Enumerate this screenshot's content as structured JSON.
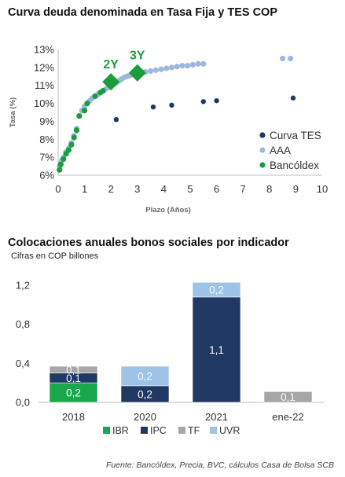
{
  "chart_data": [
    {
      "type": "scatter",
      "title": "Curva deuda denominada en Tasa Fija y TES COP",
      "xlabel": "Plazo (Años)",
      "ylabel": "Tasa (%)",
      "xlim": [
        0,
        10
      ],
      "ylim": [
        6,
        13
      ],
      "x_ticks": [
        "0",
        "1",
        "2",
        "3",
        "4",
        "5",
        "6",
        "7",
        "8",
        "9",
        "10"
      ],
      "y_ticks": [
        "6%",
        "7%",
        "8%",
        "9%",
        "10%",
        "11%",
        "12%",
        "13%"
      ],
      "grid": false,
      "legend_position": "bottom-right",
      "series": [
        {
          "name": "Curva TES",
          "color": "#1f3864",
          "points": [
            [
              2.2,
              9.1
            ],
            [
              3.6,
              9.8
            ],
            [
              4.3,
              9.9
            ],
            [
              5.5,
              10.1
            ],
            [
              6.0,
              10.15
            ],
            [
              8.9,
              10.3
            ]
          ]
        },
        {
          "name": "AAA",
          "color": "#9db8df",
          "points": [
            [
              0.05,
              6.5
            ],
            [
              0.1,
              6.7
            ],
            [
              0.15,
              6.85
            ],
            [
              0.2,
              7.0
            ],
            [
              0.3,
              7.3
            ],
            [
              0.4,
              7.5
            ],
            [
              0.5,
              7.8
            ],
            [
              0.6,
              8.2
            ],
            [
              0.7,
              8.6
            ],
            [
              0.8,
              9.3
            ],
            [
              0.9,
              9.6
            ],
            [
              1.0,
              9.85
            ],
            [
              1.1,
              10.0
            ],
            [
              1.2,
              10.15
            ],
            [
              1.3,
              10.3
            ],
            [
              1.4,
              10.4
            ],
            [
              1.5,
              10.5
            ],
            [
              1.6,
              10.6
            ],
            [
              1.7,
              10.7
            ],
            [
              1.8,
              10.8
            ],
            [
              1.9,
              10.9
            ],
            [
              2.0,
              11.0
            ],
            [
              2.1,
              11.05
            ],
            [
              2.2,
              11.15
            ],
            [
              2.3,
              11.25
            ],
            [
              2.4,
              11.35
            ],
            [
              2.5,
              11.45
            ],
            [
              2.6,
              11.5
            ],
            [
              2.7,
              11.55
            ],
            [
              2.8,
              11.6
            ],
            [
              2.9,
              11.65
            ],
            [
              3.1,
              11.7
            ],
            [
              3.3,
              11.75
            ],
            [
              3.5,
              11.8
            ],
            [
              3.7,
              11.85
            ],
            [
              3.9,
              11.9
            ],
            [
              4.1,
              11.95
            ],
            [
              4.3,
              12.0
            ],
            [
              4.5,
              12.05
            ],
            [
              4.7,
              12.1
            ],
            [
              4.9,
              12.1
            ],
            [
              5.1,
              12.15
            ],
            [
              5.3,
              12.2
            ],
            [
              5.5,
              12.2
            ],
            [
              8.5,
              12.5
            ],
            [
              8.8,
              12.5
            ]
          ]
        },
        {
          "name": "Bancóldex",
          "color": "#1a9e3c",
          "points": [
            [
              0.05,
              6.3
            ],
            [
              0.1,
              6.6
            ],
            [
              0.2,
              6.9
            ],
            [
              0.3,
              7.2
            ],
            [
              0.4,
              7.4
            ],
            [
              0.5,
              7.7
            ],
            [
              0.6,
              8.1
            ],
            [
              0.7,
              8.5
            ],
            [
              0.8,
              9.3
            ],
            [
              1.0,
              9.6
            ],
            [
              1.1,
              10.0
            ],
            [
              1.4,
              10.4
            ],
            [
              1.6,
              10.6
            ],
            [
              1.7,
              10.7
            ]
          ]
        },
        {
          "name": "",
          "color": "#1a9e3c",
          "marker": "diamond",
          "points": [
            [
              2.0,
              11.2,
              "2Y"
            ],
            [
              3.0,
              11.7,
              "3Y"
            ]
          ]
        }
      ]
    },
    {
      "type": "bar",
      "stacked": true,
      "title": "Colocaciones anuales bonos sociales por indicador",
      "subtitle": "Cifras en COP billones",
      "categories": [
        "2018",
        "2020",
        "2021",
        "ene-22"
      ],
      "ylim": [
        0,
        1.2
      ],
      "y_ticks": [
        "0,0",
        "0,4",
        "0,8",
        "1,2"
      ],
      "legend_position": "bottom",
      "series": [
        {
          "name": "IBR",
          "color": "#1aa64a",
          "values": [
            0.2,
            0,
            0,
            0
          ],
          "labels": [
            "0,2",
            "",
            "",
            ""
          ]
        },
        {
          "name": "IPC",
          "color": "#1f3864",
          "values": [
            0.1,
            0.17,
            1.08,
            0
          ],
          "labels": [
            "0,1",
            "0,2",
            "1,1",
            ""
          ]
        },
        {
          "name": "TF",
          "color": "#a6a6a6",
          "values": [
            0.07,
            0,
            0,
            0.11
          ],
          "labels": [
            "0,1",
            "",
            "",
            "0,1"
          ]
        },
        {
          "name": "UVR",
          "color": "#9dc3e6",
          "values": [
            0,
            0.2,
            0.15,
            0
          ],
          "labels": [
            "",
            "0,2",
            "0,2",
            ""
          ]
        }
      ]
    }
  ],
  "source": "Fuente: Bancóldex, Precia, BVC, cálculos Casa de Bolsa SCB"
}
